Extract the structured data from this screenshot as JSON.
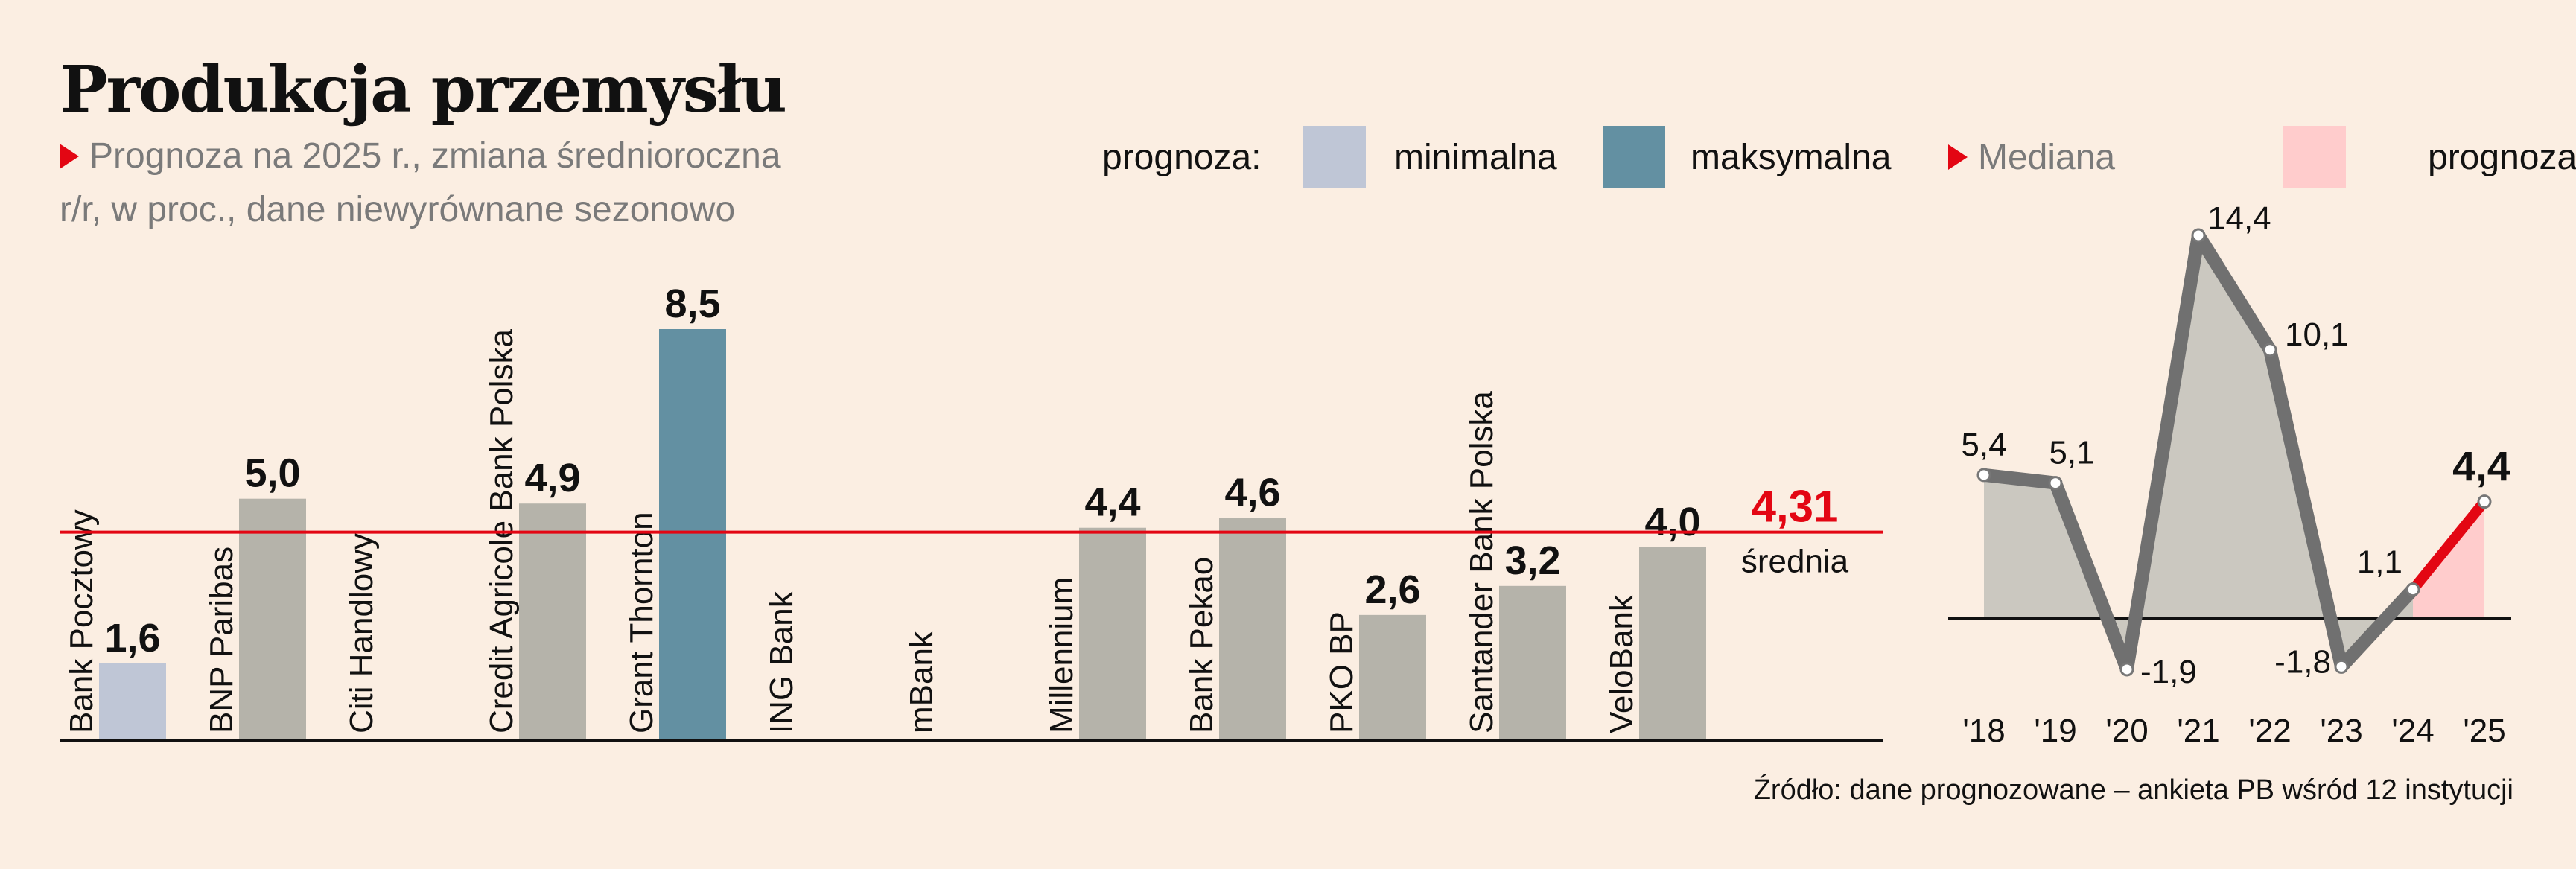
{
  "title": "Produkcja przemysłu",
  "subtitle": "Prognoza na 2025 r., zmiana średnioroczna r/r, w proc., dane niewyrównane sezonowo",
  "legend": {
    "prefix": "prognoza:",
    "minimal": "minimalna",
    "maximal": "maksymalna",
    "median": "Mediana",
    "forecast": "prognoza"
  },
  "source": "Źródło: dane prognozowane – ankieta PB wśród 12 instytucji",
  "colors": {
    "min": "#bfc6d6",
    "max": "#6390a2",
    "bar": "#b5b3aa",
    "mean_line": "#e30613",
    "history_line": "#707070",
    "history_area": "#cbc8c0",
    "forecast_line": "#e30613",
    "forecast_area": "#ffcccc"
  },
  "chart_data": [
    {
      "type": "bar",
      "categories": [
        "Bank Pocztowy",
        "BNP Paribas",
        "Citi Handlowy",
        "Credit Agricole Bank Polska",
        "Grant Thornton",
        "ING Bank",
        "mBank",
        "Millennium",
        "Bank Pekao",
        "PKO BP",
        "Santander Bank Polska",
        "VeloBank"
      ],
      "values": [
        1.6,
        5.0,
        null,
        4.9,
        8.5,
        null,
        null,
        4.4,
        4.6,
        2.6,
        3.2,
        4.0
      ],
      "value_labels": [
        "1,6",
        "5,0",
        "",
        "4,9",
        "8,5",
        "",
        "",
        "4,4",
        "4,6",
        "2,6",
        "3,2",
        "4,0"
      ],
      "highlight": {
        "min_index": 0,
        "max_index": 4
      },
      "mean": {
        "value": 4.31,
        "label": "4,31",
        "caption": "średnia"
      },
      "ylim": [
        0,
        8.5
      ]
    },
    {
      "type": "area",
      "x": [
        "'18",
        "'19",
        "'20",
        "'21",
        "'22",
        "'23",
        "'24",
        "'25"
      ],
      "values": [
        5.4,
        5.1,
        -1.9,
        14.4,
        10.1,
        -1.8,
        1.1,
        4.4
      ],
      "labels": [
        "5,4",
        "5,1",
        "-1,9",
        "14,4",
        "10,1",
        "-1,8",
        "1,1",
        "4,4"
      ],
      "forecast_from_index": 6,
      "ylim": [
        -1.9,
        14.4
      ]
    }
  ]
}
